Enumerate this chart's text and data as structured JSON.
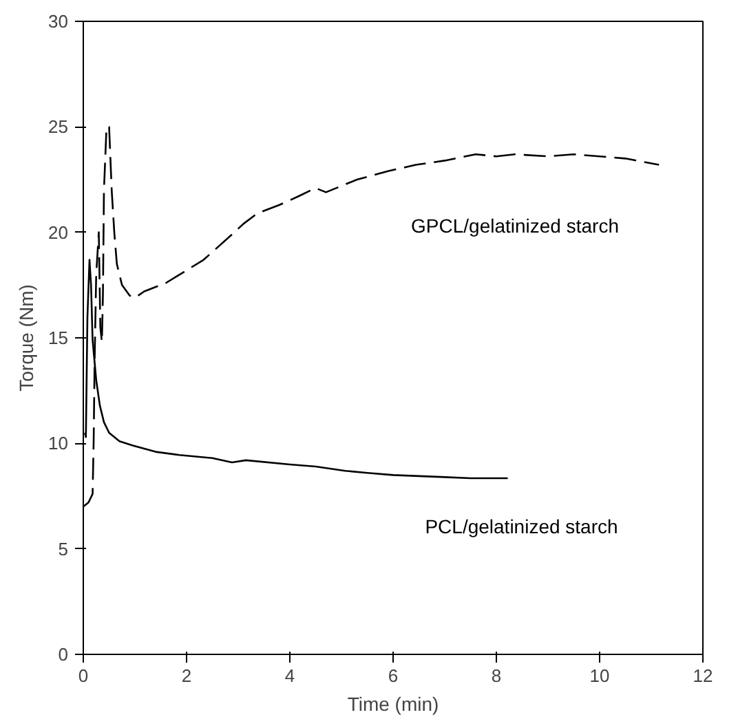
{
  "chart_data": {
    "type": "line",
    "xlabel": "Time (min)",
    "ylabel": "Torque (Nm)",
    "xlim": [
      0,
      12
    ],
    "ylim": [
      0,
      30
    ],
    "xticks": [
      0,
      2,
      4,
      6,
      8,
      10,
      12
    ],
    "yticks": [
      0,
      5,
      10,
      15,
      20,
      25,
      30
    ],
    "grid": false,
    "marker": "none",
    "series": [
      {
        "name": "GPCL/gelatinized starch",
        "color": "#000000",
        "line_style": "dashed",
        "x": [
          0,
          0.1,
          0.18,
          0.2,
          0.22,
          0.25,
          0.3,
          0.33,
          0.36,
          0.38,
          0.4,
          0.45,
          0.5,
          0.55,
          0.6,
          0.65,
          0.75,
          0.9,
          1.0,
          1.18,
          1.6,
          2.0,
          2.33,
          2.88,
          3.1,
          3.37,
          3.8,
          4.16,
          4.5,
          4.7,
          5.0,
          5.3,
          5.9,
          6.44,
          7.0,
          7.6,
          8.0,
          8.36,
          9.0,
          9.5,
          10.0,
          10.5,
          11.15
        ],
        "values": [
          7.0,
          7.2,
          7.6,
          10,
          14,
          18,
          20,
          15.5,
          14.8,
          17,
          22,
          25,
          25,
          22,
          20,
          18.5,
          17.5,
          17.0,
          16.9,
          17.2,
          17.6,
          18.2,
          18.7,
          19.9,
          20.4,
          20.9,
          21.3,
          21.7,
          22.1,
          21.9,
          22.2,
          22.5,
          22.9,
          23.2,
          23.4,
          23.7,
          23.6,
          23.7,
          23.6,
          23.7,
          23.6,
          23.5,
          23.2
        ]
      },
      {
        "name": "PCL/gelatinized starch",
        "color": "#000000",
        "line_style": "solid",
        "x": [
          0.03,
          0.05,
          0.08,
          0.12,
          0.15,
          0.18,
          0.25,
          0.32,
          0.4,
          0.5,
          0.7,
          0.96,
          1.4,
          1.86,
          2.5,
          2.88,
          3.15,
          4.0,
          4.5,
          5.07,
          5.5,
          6.0,
          6.5,
          7.0,
          7.5,
          8.22
        ],
        "values": [
          10.5,
          10.3,
          16,
          18.7,
          17.5,
          14.9,
          13.0,
          11.8,
          11.0,
          10.5,
          10.1,
          9.9,
          9.6,
          9.45,
          9.3,
          9.1,
          9.2,
          9.0,
          8.9,
          8.7,
          8.6,
          8.5,
          8.45,
          8.4,
          8.35,
          8.35
        ]
      }
    ]
  }
}
